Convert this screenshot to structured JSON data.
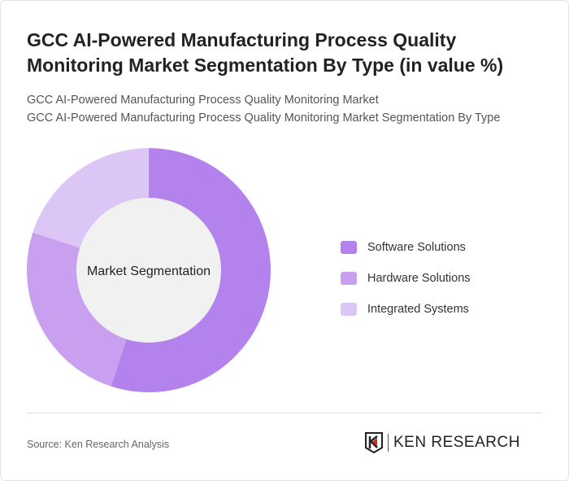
{
  "title": "GCC AI-Powered Manufacturing Process Quality Monitoring Market Segmentation By Type (in value %)",
  "subtitle1": "GCC AI-Powered Manufacturing Process Quality Monitoring Market",
  "subtitle2": "GCC AI-Powered Manufacturing Process Quality Monitoring Market Segmentation By Type",
  "source": "Source: Ken Research Analysis",
  "logo_text": "KEN RESEARCH",
  "chart_data": {
    "type": "pie",
    "variant": "donut",
    "center_label": "Market Segmentation",
    "categories": [
      "Software Solutions",
      "Hardware Solutions",
      "Integrated Systems"
    ],
    "values": [
      55,
      25,
      20
    ],
    "colors": [
      "#b482ec",
      "#c8a0ef",
      "#dcc6f6"
    ],
    "legend_position": "right"
  }
}
